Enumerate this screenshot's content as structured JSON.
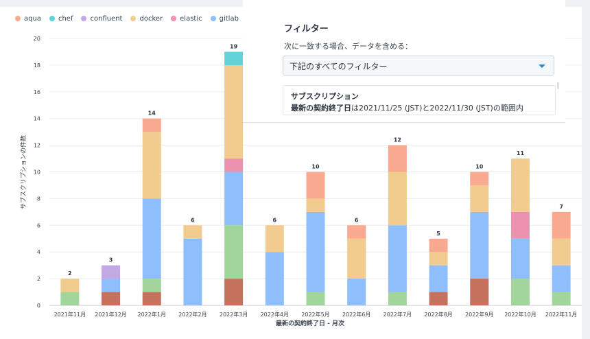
{
  "legend": [
    {
      "name": "aqua",
      "color": "#f9a98f"
    },
    {
      "name": "chef",
      "color": "#5ed3d8"
    },
    {
      "name": "confluent",
      "color": "#c3a8e6"
    },
    {
      "name": "docker",
      "color": "#f2cb8e"
    },
    {
      "name": "elastic",
      "color": "#ec91b0"
    },
    {
      "name": "gitlab",
      "color": "#8fbefc"
    }
  ],
  "filter": {
    "title": "フィルター",
    "subtitle": "次に一致する場合、データを含める：",
    "select_value": "下記のすべてのフィルター",
    "card_title": "サブスクリプション",
    "card_field": "最新の契約終了日",
    "card_rest": "は2021/11/25 (JST)と2022/11/30 (JST)の範囲内"
  },
  "chart_data": {
    "type": "bar",
    "stacked": true,
    "xlabel": "最新の契約終了日 - 月次",
    "ylabel": "サブスクリプションの件数",
    "ylim": [
      0,
      20
    ],
    "yticks": [
      0,
      2,
      4,
      6,
      8,
      10,
      12,
      14,
      16,
      18,
      20
    ],
    "grid": true,
    "legend_position": "top-left",
    "categories": [
      "2021年11月",
      "2021年12月",
      "2022年1月",
      "2022年2月",
      "2022年3月",
      "2022年4月",
      "2022年5月",
      "2022年6月",
      "2022年7月",
      "2022年8月",
      "2022年9月",
      "2022年10月",
      "2022年11月"
    ],
    "totals": [
      2,
      3,
      14,
      6,
      19,
      6,
      10,
      6,
      12,
      5,
      10,
      11,
      7
    ],
    "series": [
      {
        "name": "",
        "color": "#c4725e",
        "values": [
          0,
          1,
          1,
          0,
          2,
          0,
          0,
          0,
          0,
          1,
          2,
          0,
          0
        ]
      },
      {
        "name": "",
        "color": "#a2d59b",
        "values": [
          1,
          0,
          1,
          0,
          4,
          0,
          1,
          0,
          1,
          0,
          0,
          2,
          1
        ]
      },
      {
        "name": "gitlab",
        "color": "#8fbefc",
        "values": [
          0,
          1,
          6,
          5,
          4,
          4,
          6,
          2,
          5,
          2,
          5,
          3,
          2
        ]
      },
      {
        "name": "elastic",
        "color": "#ec91b0",
        "values": [
          0,
          0,
          0,
          0,
          1,
          0,
          0,
          0,
          0,
          0,
          0,
          2,
          0
        ]
      },
      {
        "name": "docker",
        "color": "#f2cb8e",
        "values": [
          1,
          0,
          5,
          1,
          7,
          2,
          1,
          3,
          4,
          1,
          2,
          4,
          2
        ]
      },
      {
        "name": "confluent",
        "color": "#c3a8e6",
        "values": [
          0,
          1,
          0,
          0,
          0,
          0,
          0,
          0,
          0,
          0,
          0,
          0,
          0
        ]
      },
      {
        "name": "chef",
        "color": "#5ed3d8",
        "values": [
          0,
          0,
          0,
          0,
          1,
          0,
          0,
          0,
          0,
          0,
          0,
          0,
          0
        ]
      },
      {
        "name": "aqua",
        "color": "#f9a98f",
        "values": [
          0,
          0,
          1,
          0,
          0,
          0,
          2,
          1,
          2,
          1,
          1,
          0,
          2
        ]
      }
    ]
  }
}
